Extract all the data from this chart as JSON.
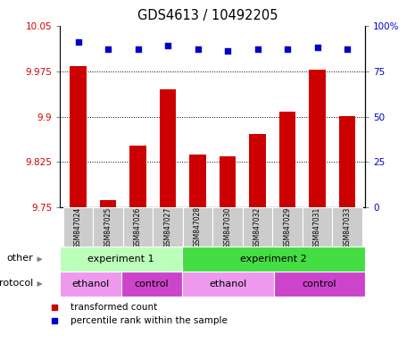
{
  "title": "GDS4613 / 10492205",
  "samples": [
    "GSM847024",
    "GSM847025",
    "GSM847026",
    "GSM847027",
    "GSM847028",
    "GSM847030",
    "GSM847032",
    "GSM847029",
    "GSM847031",
    "GSM847033"
  ],
  "bar_values": [
    9.983,
    9.762,
    9.852,
    9.945,
    9.838,
    9.835,
    9.872,
    9.908,
    9.978,
    9.901
  ],
  "percentile_values": [
    91,
    87,
    87,
    89,
    87,
    86,
    87,
    87,
    88,
    87
  ],
  "bar_color": "#cc0000",
  "dot_color": "#0000cc",
  "ylim_left": [
    9.75,
    10.05
  ],
  "ylim_right": [
    0,
    100
  ],
  "yticks_left": [
    9.75,
    9.825,
    9.9,
    9.975,
    10.05
  ],
  "yticks_right": [
    0,
    25,
    50,
    75,
    100
  ],
  "ytick_labels_left": [
    "9.75",
    "9.825",
    "9.9",
    "9.975",
    "10.05"
  ],
  "ytick_labels_right": [
    "0",
    "25",
    "50",
    "75",
    "100%"
  ],
  "grid_color": "#000000",
  "other_row": [
    {
      "label": "experiment 1",
      "start": 0,
      "end": 4,
      "color": "#bbffbb"
    },
    {
      "label": "experiment 2",
      "start": 4,
      "end": 10,
      "color": "#44dd44"
    }
  ],
  "protocol_row": [
    {
      "label": "ethanol",
      "start": 0,
      "end": 2,
      "color": "#ee99ee"
    },
    {
      "label": "control",
      "start": 2,
      "end": 4,
      "color": "#cc44cc"
    },
    {
      "label": "ethanol",
      "start": 4,
      "end": 7,
      "color": "#ee99ee"
    },
    {
      "label": "control",
      "start": 7,
      "end": 10,
      "color": "#cc44cc"
    }
  ],
  "legend_items": [
    {
      "label": "transformed count",
      "color": "#cc0000"
    },
    {
      "label": "percentile rank within the sample",
      "color": "#0000cc"
    }
  ],
  "bg_color": "#ffffff",
  "tick_label_color_left": "#cc0000",
  "tick_label_color_right": "#0000cc",
  "xtick_box_color": "#cccccc",
  "xtick_fontsize": 5.5,
  "ytick_fontsize": 7.5,
  "label_fontsize": 8,
  "row_fontsize": 8
}
